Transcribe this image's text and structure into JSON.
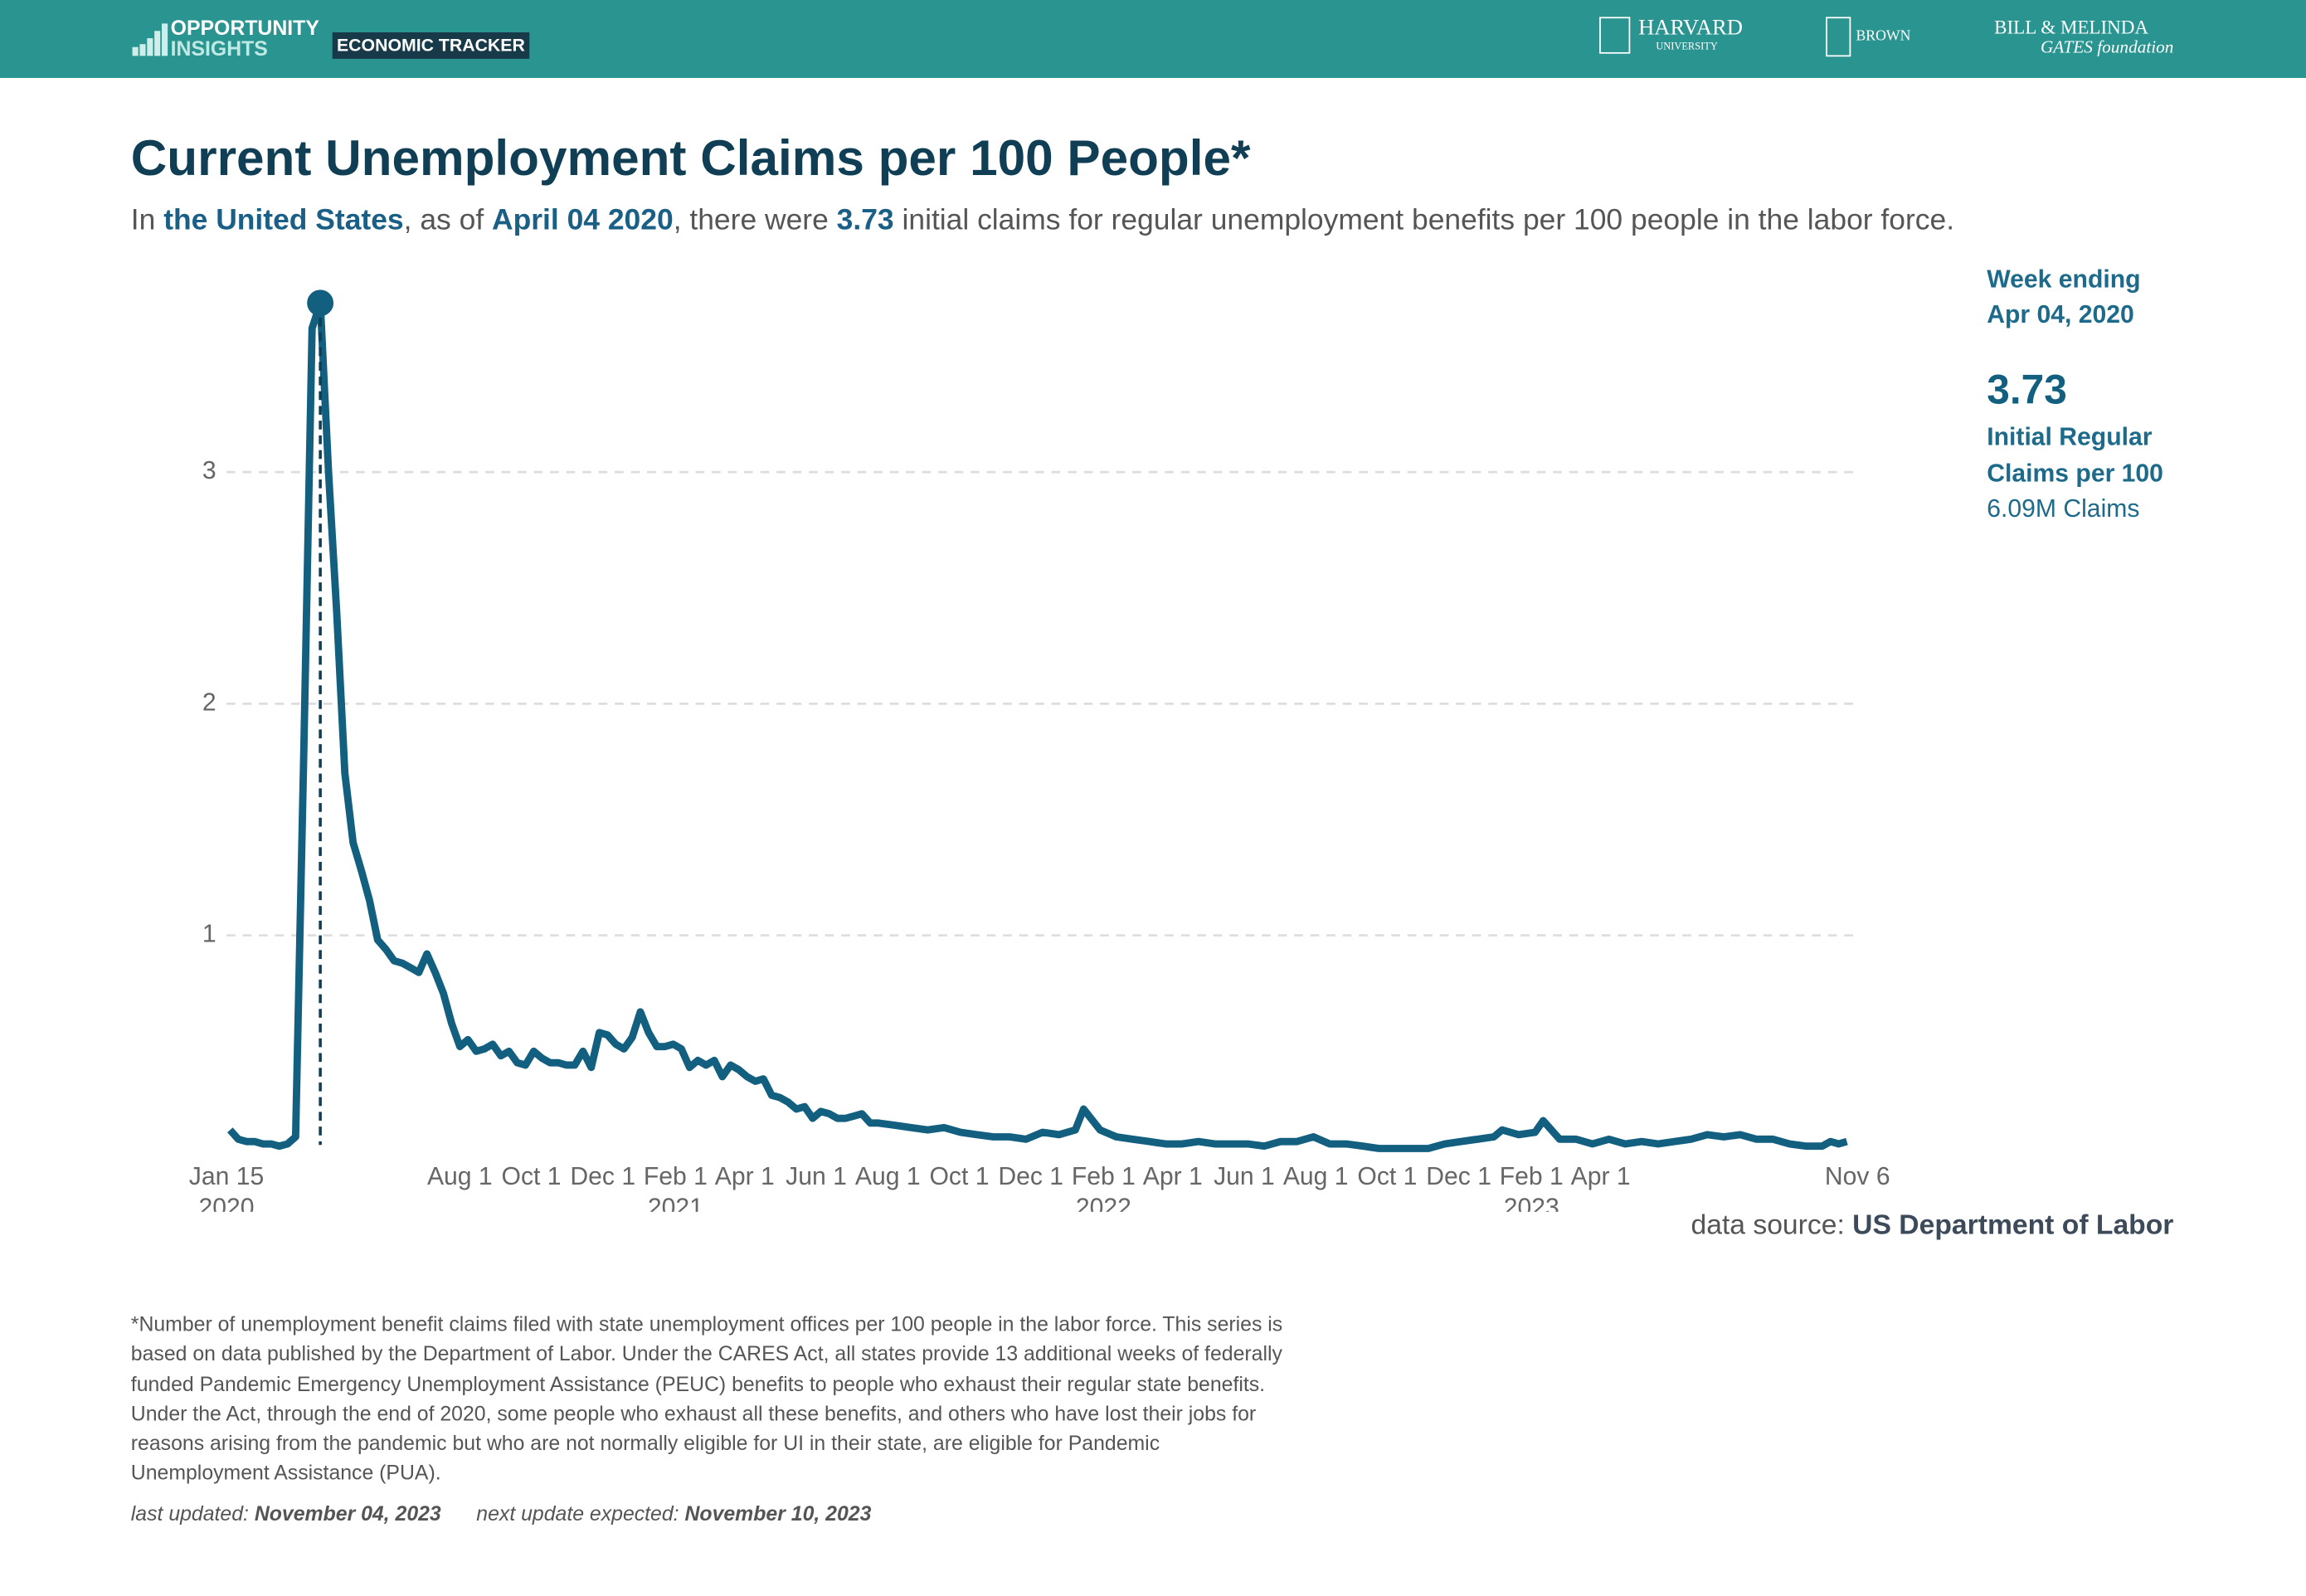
{
  "header": {
    "brand_top": "OPPORTUNITY",
    "brand_bottom": "INSIGHTS",
    "tracker": "ECONOMIC TRACKER",
    "harvard": "HARVARD",
    "harvard_sub": "UNIVERSITY",
    "brown": "BROWN",
    "gates_top": "BILL & MELINDA",
    "gates_bottom": "GATES foundation"
  },
  "chart_data": {
    "type": "line",
    "title": "Current Unemployment Claims per 100 People*",
    "subtitle": [
      {
        "text": "In "
      },
      {
        "text": "the United States",
        "bold": true
      },
      {
        "text": ", as of "
      },
      {
        "text": "April 04 2020",
        "bold": true
      },
      {
        "text": ", there were "
      },
      {
        "text": "3.73",
        "bold": true
      },
      {
        "text": " initial claims for regular unemployment benefits per 100 people in the labor force."
      }
    ],
    "color": "#125f80",
    "grid": true,
    "x": [
      "2020-01-18",
      "2020-01-25",
      "2020-02-01",
      "2020-02-08",
      "2020-02-15",
      "2020-02-22",
      "2020-02-29",
      "2020-03-07",
      "2020-03-14",
      "2020-03-21",
      "2020-03-28",
      "2020-04-04",
      "2020-04-11",
      "2020-04-18",
      "2020-04-25",
      "2020-05-02",
      "2020-05-09",
      "2020-05-16",
      "2020-05-23",
      "2020-05-30",
      "2020-06-06",
      "2020-06-13",
      "2020-06-20",
      "2020-06-27",
      "2020-07-04",
      "2020-07-11",
      "2020-07-18",
      "2020-07-25",
      "2020-08-01",
      "2020-08-08",
      "2020-08-15",
      "2020-08-22",
      "2020-08-29",
      "2020-09-05",
      "2020-09-12",
      "2020-09-19",
      "2020-09-26",
      "2020-10-03",
      "2020-10-10",
      "2020-10-17",
      "2020-10-24",
      "2020-10-31",
      "2020-11-07",
      "2020-11-14",
      "2020-11-21",
      "2020-11-28",
      "2020-12-05",
      "2020-12-12",
      "2020-12-19",
      "2020-12-26",
      "2021-01-02",
      "2021-01-09",
      "2021-01-16",
      "2021-01-23",
      "2021-01-30",
      "2021-02-06",
      "2021-02-13",
      "2021-02-20",
      "2021-02-27",
      "2021-03-06",
      "2021-03-13",
      "2021-03-20",
      "2021-03-27",
      "2021-04-03",
      "2021-04-10",
      "2021-04-17",
      "2021-04-24",
      "2021-05-01",
      "2021-05-08",
      "2021-05-15",
      "2021-05-22",
      "2021-05-29",
      "2021-06-05",
      "2021-06-12",
      "2021-06-19",
      "2021-06-26",
      "2021-07-03",
      "2021-07-10",
      "2021-07-17",
      "2021-07-24",
      "2021-08-07",
      "2021-08-21",
      "2021-09-04",
      "2021-09-18",
      "2021-10-02",
      "2021-10-16",
      "2021-10-30",
      "2021-11-13",
      "2021-11-27",
      "2021-12-11",
      "2021-12-25",
      "2022-01-08",
      "2022-01-15",
      "2022-01-29",
      "2022-02-12",
      "2022-02-26",
      "2022-03-12",
      "2022-03-26",
      "2022-04-09",
      "2022-04-23",
      "2022-05-07",
      "2022-05-21",
      "2022-06-04",
      "2022-06-18",
      "2022-07-02",
      "2022-07-16",
      "2022-07-30",
      "2022-08-13",
      "2022-08-27",
      "2022-09-10",
      "2022-09-24",
      "2022-10-08",
      "2022-10-22",
      "2022-11-05",
      "2022-11-19",
      "2022-12-03",
      "2022-12-17",
      "2022-12-31",
      "2023-01-07",
      "2023-01-21",
      "2023-02-04",
      "2023-02-11",
      "2023-02-25",
      "2023-03-11",
      "2023-03-25",
      "2023-04-08",
      "2023-04-22",
      "2023-05-06",
      "2023-05-20",
      "2023-06-03",
      "2023-06-17",
      "2023-07-01",
      "2023-07-15",
      "2023-07-29",
      "2023-08-12",
      "2023-08-26",
      "2023-09-09",
      "2023-09-23",
      "2023-10-07",
      "2023-10-14",
      "2023-10-21",
      "2023-10-28"
    ],
    "values": [
      0.16,
      0.12,
      0.11,
      0.11,
      0.1,
      0.1,
      0.09,
      0.1,
      0.13,
      1.8,
      3.62,
      3.73,
      3.0,
      2.4,
      1.7,
      1.4,
      1.28,
      1.15,
      0.98,
      0.94,
      0.89,
      0.88,
      0.86,
      0.84,
      0.92,
      0.84,
      0.75,
      0.62,
      0.52,
      0.55,
      0.5,
      0.51,
      0.53,
      0.48,
      0.5,
      0.45,
      0.44,
      0.5,
      0.47,
      0.45,
      0.45,
      0.44,
      0.44,
      0.5,
      0.43,
      0.58,
      0.57,
      0.53,
      0.51,
      0.56,
      0.67,
      0.58,
      0.52,
      0.52,
      0.53,
      0.51,
      0.43,
      0.46,
      0.44,
      0.46,
      0.39,
      0.44,
      0.42,
      0.39,
      0.37,
      0.38,
      0.31,
      0.3,
      0.28,
      0.25,
      0.26,
      0.21,
      0.24,
      0.23,
      0.21,
      0.21,
      0.22,
      0.23,
      0.19,
      0.19,
      0.18,
      0.17,
      0.16,
      0.17,
      0.15,
      0.14,
      0.13,
      0.13,
      0.12,
      0.15,
      0.14,
      0.16,
      0.25,
      0.16,
      0.13,
      0.12,
      0.11,
      0.1,
      0.1,
      0.11,
      0.1,
      0.1,
      0.1,
      0.09,
      0.11,
      0.11,
      0.13,
      0.1,
      0.1,
      0.09,
      0.08,
      0.08,
      0.08,
      0.08,
      0.1,
      0.11,
      0.12,
      0.13,
      0.16,
      0.14,
      0.15,
      0.2,
      0.12,
      0.12,
      0.1,
      0.12,
      0.1,
      0.11,
      0.1,
      0.11,
      0.12,
      0.14,
      0.13,
      0.14,
      0.12,
      0.12,
      0.1,
      0.09,
      0.09,
      0.11,
      0.1,
      0.11
    ],
    "xlim": [
      "2020-01-15",
      "2023-11-06"
    ],
    "xticks": [
      {
        "value": "2020-01-15",
        "label": "Jan 15",
        "year": "2020"
      },
      {
        "value": "2020-08-01",
        "label": "Aug 1"
      },
      {
        "value": "2020-10-01",
        "label": "Oct 1"
      },
      {
        "value": "2020-12-01",
        "label": "Dec 1"
      },
      {
        "value": "2021-02-01",
        "label": "Feb 1",
        "year": "2021"
      },
      {
        "value": "2021-04-01",
        "label": "Apr 1"
      },
      {
        "value": "2021-06-01",
        "label": "Jun 1"
      },
      {
        "value": "2021-08-01",
        "label": "Aug 1"
      },
      {
        "value": "2021-10-01",
        "label": "Oct 1"
      },
      {
        "value": "2021-12-01",
        "label": "Dec 1"
      },
      {
        "value": "2022-02-01",
        "label": "Feb 1",
        "year": "2022"
      },
      {
        "value": "2022-04-01",
        "label": "Apr 1"
      },
      {
        "value": "2022-06-01",
        "label": "Jun 1"
      },
      {
        "value": "2022-08-01",
        "label": "Aug 1"
      },
      {
        "value": "2022-10-01",
        "label": "Oct 1"
      },
      {
        "value": "2022-12-01",
        "label": "Dec 1"
      },
      {
        "value": "2023-02-01",
        "label": "Feb 1",
        "year": "2023"
      },
      {
        "value": "2023-04-01",
        "label": "Apr 1"
      },
      {
        "value": "2023-11-06",
        "label": "Nov 6"
      }
    ],
    "ylim": [
      0,
      3.8
    ],
    "yticks": [
      1,
      2,
      3
    ],
    "highlight": {
      "heading": "Week ending",
      "date": "Apr 04, 2020",
      "value": 3.73,
      "measure_lines": [
        "Initial Regular",
        "Claims per 100"
      ],
      "claims": "6.09M Claims"
    },
    "source_prefix": "data source: ",
    "source": "US Department of Labor"
  },
  "footnote": "*Number of unemployment benefit claims filed with state unemployment offices per 100 people in the labor force. This series is based on data published by the Department of Labor. Under the CARES Act, all states provide 13 additional weeks of federally funded Pandemic Emergency Unemployment Assistance (PEUC) benefits to people who exhaust their regular state benefits. Under the Act, through the end of 2020, some people who exhaust all these benefits, and others who have lost their jobs for reasons arising from the pandemic but who are not normally eligible for UI in their state, are eligible for Pandemic Unemployment Assistance (PUA).",
  "updates": {
    "last_label": "last updated: ",
    "last": "November 04, 2023",
    "next_label": "next update expected: ",
    "next": "November 10, 2023"
  }
}
